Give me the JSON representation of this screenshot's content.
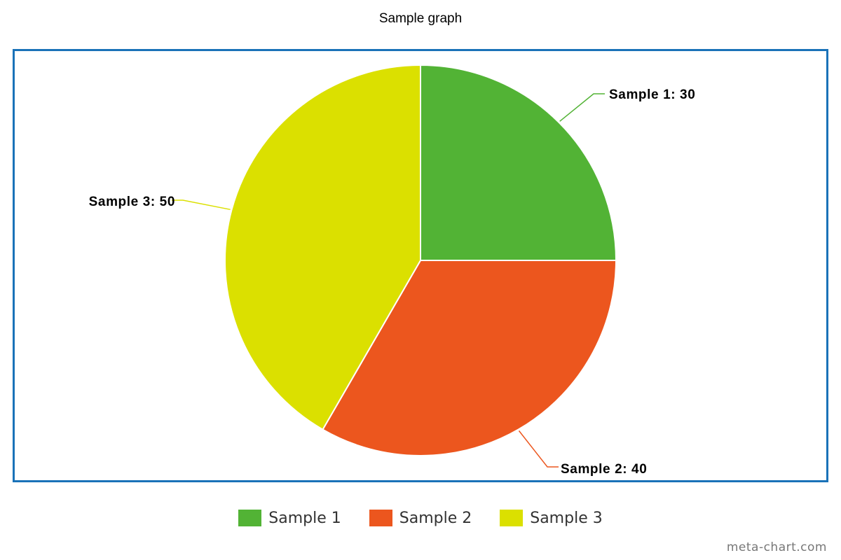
{
  "title": "Sample graph",
  "credit": "meta-chart.com",
  "colors": {
    "frame": "#1a72b8",
    "slice_border": "#ffffff"
  },
  "chart_data": {
    "type": "pie",
    "title": "Sample graph",
    "legend_position": "bottom",
    "slices": [
      {
        "label": "Sample 1",
        "value": 30,
        "color": "#52b335",
        "data_label": "Sample 1: 30"
      },
      {
        "label": "Sample 2",
        "value": 40,
        "color": "#ec561e",
        "data_label": "Sample 2: 40"
      },
      {
        "label": "Sample 3",
        "value": 50,
        "color": "#dbe000",
        "data_label": "Sample 3: 50"
      }
    ]
  }
}
